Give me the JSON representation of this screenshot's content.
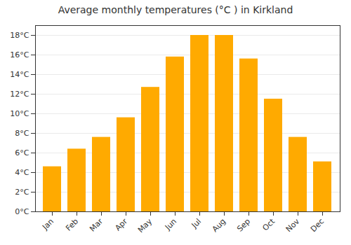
{
  "chart_data": {
    "type": "bar",
    "title": "Average monthly temperatures (°C ) in Kirkland",
    "categories": [
      "Jan",
      "Feb",
      "Mar",
      "Apr",
      "May",
      "Jun",
      "Jul",
      "Aug",
      "Sep",
      "Oct",
      "Nov",
      "Dec"
    ],
    "values": [
      4.6,
      6.4,
      7.6,
      9.6,
      12.7,
      15.8,
      18.0,
      18.0,
      15.6,
      11.5,
      7.6,
      5.1
    ],
    "color": "#FFAA00",
    "ylim": [
      0,
      19
    ],
    "yticks": [
      {
        "value": 0,
        "label": "0°C"
      },
      {
        "value": 2,
        "label": "2°C"
      },
      {
        "value": 4,
        "label": "4°C"
      },
      {
        "value": 6,
        "label": "6°C"
      },
      {
        "value": 8,
        "label": "8°C"
      },
      {
        "value": 10,
        "label": "10°C"
      },
      {
        "value": 12,
        "label": "12°C"
      },
      {
        "value": 14,
        "label": "14°C"
      },
      {
        "value": 16,
        "label": "16°C"
      },
      {
        "value": 18,
        "label": "18°C"
      }
    ],
    "grid": true
  }
}
